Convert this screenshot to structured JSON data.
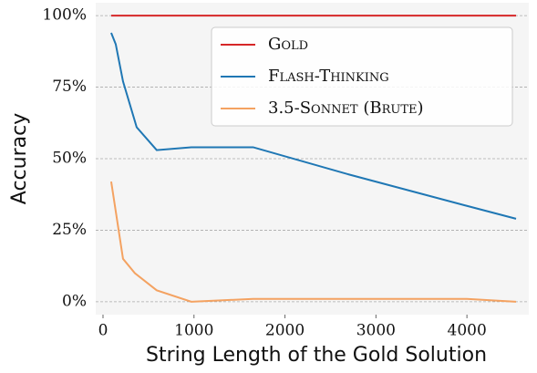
{
  "chart_data": {
    "type": "line",
    "xlabel": "String Length of the Gold Solution",
    "ylabel": "Accuracy",
    "xlim": [
      -80,
      4680
    ],
    "xticks": [
      0,
      1000,
      2000,
      3000,
      4000
    ],
    "ylim": [
      -4.5,
      104.5
    ],
    "yticks": [
      {
        "value": 0,
        "label": "0%"
      },
      {
        "value": 25,
        "label": "25%"
      },
      {
        "value": 50,
        "label": "50%"
      },
      {
        "value": 75,
        "label": "75%"
      },
      {
        "value": 100,
        "label": "100%"
      }
    ],
    "grid": true,
    "legend": "upper right",
    "series": [
      {
        "name": "Gold",
        "color": "#d62728",
        "x": [
          90,
          4540
        ],
        "values": [
          100,
          100
        ]
      },
      {
        "name": "Flash-Thinking",
        "color": "#1f77b4",
        "x": [
          90,
          140,
          220,
          370,
          590,
          970,
          1650,
          2700,
          4000,
          4540
        ],
        "values": [
          94,
          90,
          77,
          61,
          53,
          54,
          54,
          44.5,
          33.5,
          29
        ]
      },
      {
        "name": "3.5-Sonnet (Brute)",
        "color": "#f4a261",
        "x": [
          90,
          220,
          350,
          590,
          970,
          1650,
          4000,
          4540
        ],
        "values": [
          42,
          15,
          10,
          4,
          0,
          1,
          1,
          0
        ]
      }
    ]
  }
}
